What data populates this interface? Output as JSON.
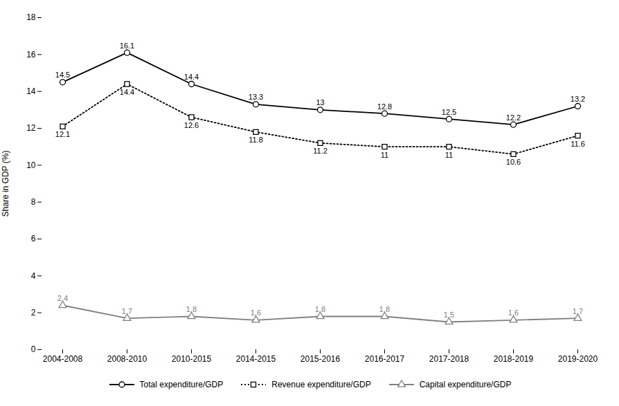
{
  "chart_data": {
    "type": "line",
    "ylabel": "Share in GDP (%)",
    "categories": [
      "2004-2008",
      "2008-2010",
      "2010-2015",
      "2014-2015",
      "2015-2016",
      "2016-2017",
      "2017-2018",
      "2018-2019",
      "2019-2020"
    ],
    "series": [
      {
        "name": "Total expenditure/GDP",
        "color": "#000000",
        "marker": "circle",
        "line_style": "solid",
        "values": [
          14.5,
          16.1,
          14.4,
          13.3,
          13.0,
          12.8,
          12.5,
          12.2,
          13.2
        ]
      },
      {
        "name": "Revenue expenditure/GDP",
        "color": "#000000",
        "marker": "square",
        "line_style": "dotted",
        "values": [
          12.1,
          14.4,
          12.6,
          11.8,
          11.2,
          11.0,
          11.0,
          10.6,
          11.6
        ]
      },
      {
        "name": "Capital expenditure/GDP",
        "color": "#808080",
        "marker": "triangle",
        "line_style": "solid",
        "values": [
          2.4,
          1.7,
          1.8,
          1.6,
          1.8,
          1.8,
          1.5,
          1.6,
          1.7
        ]
      }
    ],
    "ylim": [
      0,
      18
    ],
    "yticks": [
      0,
      2,
      4,
      6,
      8,
      10,
      12,
      14,
      16,
      18
    ],
    "grid": false,
    "data_labels": true,
    "legend": "bottom"
  }
}
